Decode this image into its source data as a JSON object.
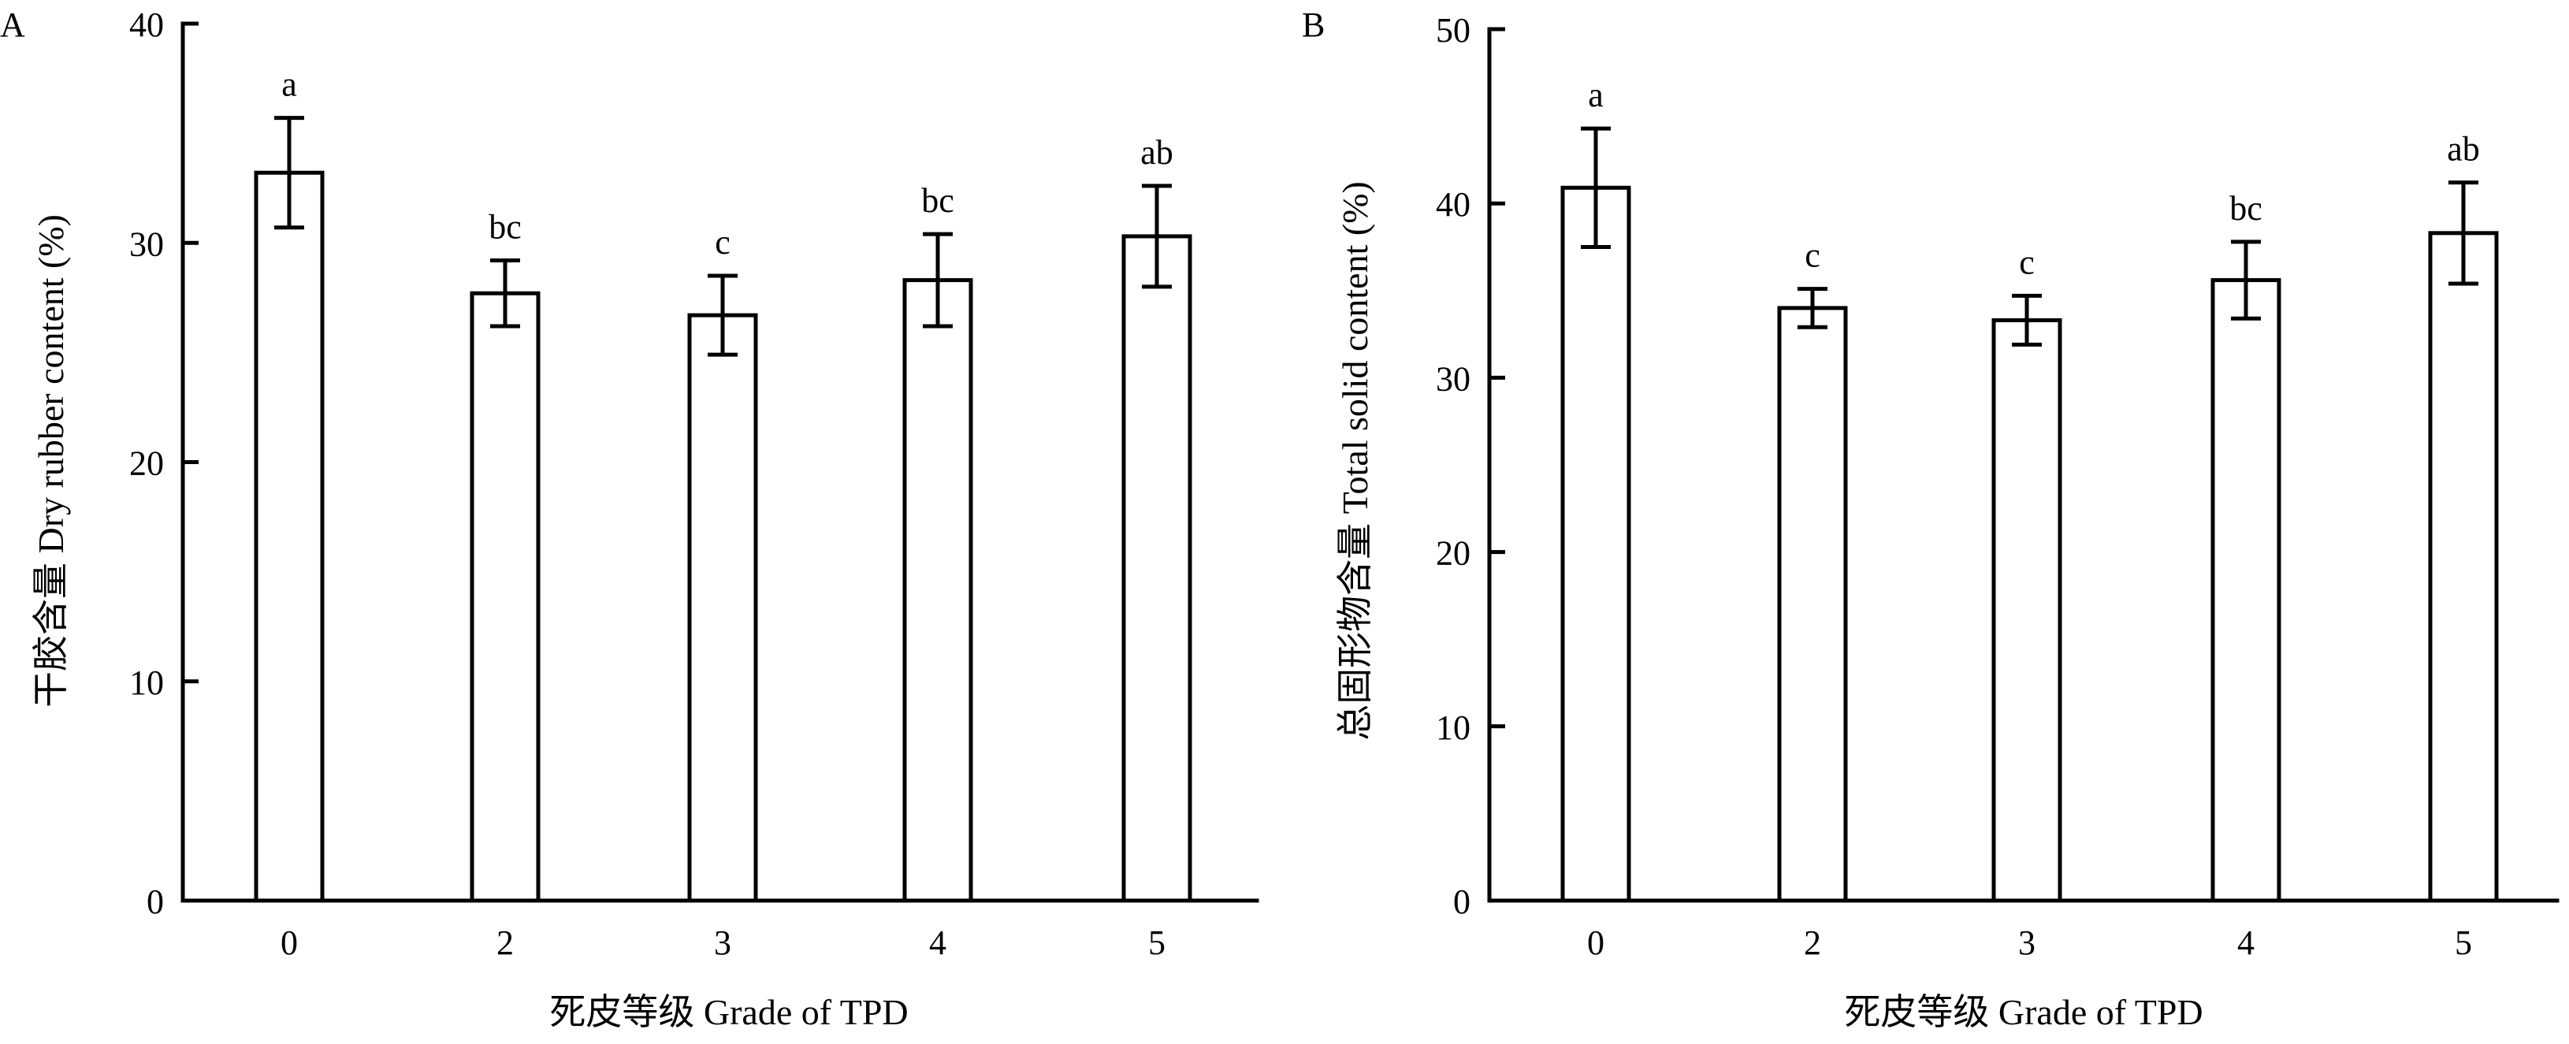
{
  "chart_data": [
    {
      "panel": "A",
      "type": "bar",
      "categories": [
        "0",
        "2",
        "3",
        "4",
        "5"
      ],
      "values": [
        33.2,
        27.7,
        26.7,
        28.3,
        30.3
      ],
      "errors": [
        2.5,
        1.5,
        1.8,
        2.1,
        2.3
      ],
      "significance": [
        "a",
        "bc",
        "c",
        "bc",
        "ab"
      ],
      "xlabel": "死皮等级  Grade of TPD",
      "ylabel": "干胶含量  Dry rubber content (%)",
      "ylim": [
        0,
        40
      ],
      "yticks": [
        0,
        10,
        20,
        30,
        40
      ],
      "grid": false,
      "bar_fill": "#ffffff",
      "stroke": "#000000"
    },
    {
      "panel": "B",
      "type": "bar",
      "categories": [
        "0",
        "2",
        "3",
        "4",
        "5"
      ],
      "values": [
        40.9,
        34.0,
        33.3,
        35.6,
        38.3
      ],
      "errors": [
        3.4,
        1.1,
        1.4,
        2.2,
        2.9
      ],
      "significance": [
        "a",
        "c",
        "c",
        "bc",
        "ab"
      ],
      "xlabel": "死皮等级  Grade of TPD",
      "ylabel": "总固形物含量  Total solid content (%)",
      "ylim": [
        0,
        50
      ],
      "yticks": [
        0,
        10,
        20,
        30,
        40,
        50
      ],
      "grid": false,
      "bar_fill": "#ffffff",
      "stroke": "#000000"
    }
  ]
}
